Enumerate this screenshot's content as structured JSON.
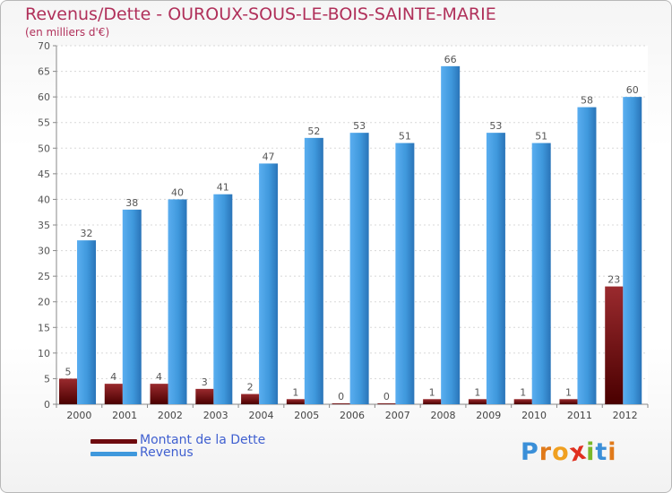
{
  "header": {
    "title": "Revenus/Dette - OUROUX-SOUS-LE-BOIS-SAINTE-MARIE",
    "subtitle": "(en milliers d'€)"
  },
  "chart_data": {
    "type": "bar",
    "title": "Revenus/Dette - OUROUX-SOUS-LE-BOIS-SAINTE-MARIE",
    "subtitle": "(en milliers d'€)",
    "categories": [
      "2000",
      "2001",
      "2002",
      "2003",
      "2004",
      "2005",
      "2006",
      "2007",
      "2008",
      "2009",
      "2010",
      "2011",
      "2012"
    ],
    "series": [
      {
        "name": "Montant de la Dette",
        "color": "#7a0e12",
        "values": [
          5,
          4,
          4,
          3,
          2,
          1,
          0,
          0,
          1,
          1,
          1,
          1,
          23
        ]
      },
      {
        "name": "Revenus",
        "color": "#3f98dc",
        "values": [
          32,
          38,
          40,
          41,
          47,
          52,
          53,
          51,
          66,
          53,
          51,
          58,
          60
        ]
      }
    ],
    "ylim": [
      0,
      70
    ],
    "yticks": [
      0,
      5,
      10,
      15,
      20,
      25,
      30,
      35,
      40,
      45,
      50,
      55,
      60,
      65,
      70
    ],
    "grid": true,
    "legend": "bottom-left",
    "xlabel": "",
    "ylabel": ""
  },
  "legend": {
    "items": [
      {
        "label": "Montant de la Dette",
        "color": "#6e0a0e"
      },
      {
        "label": "Revenus",
        "color": "#3f98dc"
      }
    ]
  },
  "logo": {
    "letters": [
      {
        "ch": "P",
        "color": "#3a8fd8"
      },
      {
        "ch": "r",
        "color": "#e07a1a"
      },
      {
        "ch": "o",
        "color": "#f0a020"
      },
      {
        "ch": "x",
        "color": "#e03020"
      },
      {
        "ch": "i",
        "color": "#7ab82a"
      },
      {
        "ch": "t",
        "color": "#3a8fd8"
      },
      {
        "ch": "i",
        "color": "#e07a1a"
      }
    ]
  }
}
